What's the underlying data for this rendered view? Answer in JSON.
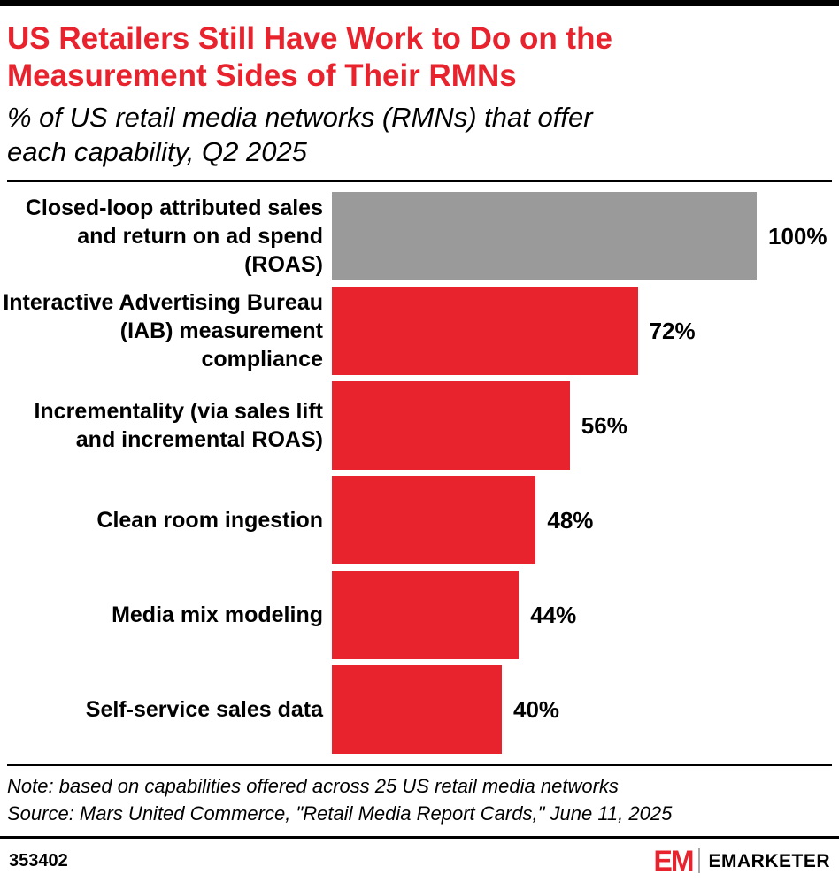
{
  "colors": {
    "red": "#e8232d",
    "gray_bar": "#9a9a9a",
    "black": "#000000"
  },
  "header": {
    "title_lines": [
      "US Retailers Still Have Work to Do on the",
      "Measurement Sides of Their RMNs"
    ],
    "subtitle_lines": [
      "% of US retail media networks (RMNs) that offer",
      "each capability, Q2 2025"
    ]
  },
  "chart_data": {
    "type": "bar",
    "orientation": "horizontal",
    "title": "US Retailers Still Have Work to Do on the Measurement Sides of Their RMNs",
    "subtitle": "% of US retail media networks (RMNs) that offer each capability, Q2 2025",
    "categories": [
      "Closed-loop attributed sales and return on ad spend (ROAS)",
      "Interactive Advertising Bureau (IAB) measurement compliance",
      "Incrementality (via sales lift and incremental ROAS)",
      "Clean room ingestion",
      "Media mix modeling",
      "Self-service sales data"
    ],
    "values": [
      100,
      72,
      56,
      48,
      44,
      40
    ],
    "value_labels": [
      "100%",
      "72%",
      "56%",
      "48%",
      "44%",
      "40%"
    ],
    "bar_colors": [
      "#9a9a9a",
      "#e8232d",
      "#e8232d",
      "#e8232d",
      "#e8232d",
      "#e8232d"
    ],
    "xlim": [
      0,
      100
    ],
    "grid": false,
    "legend": "none"
  },
  "notes": {
    "note": "Note: based on capabilities offered across 25 US retail media networks",
    "source": "Source: Mars United Commerce, \"Retail Media Report Cards,\" June 11, 2025"
  },
  "footer": {
    "chart_id": "353402",
    "logo_mark": "EM",
    "logo_text": "EMARKETER"
  }
}
